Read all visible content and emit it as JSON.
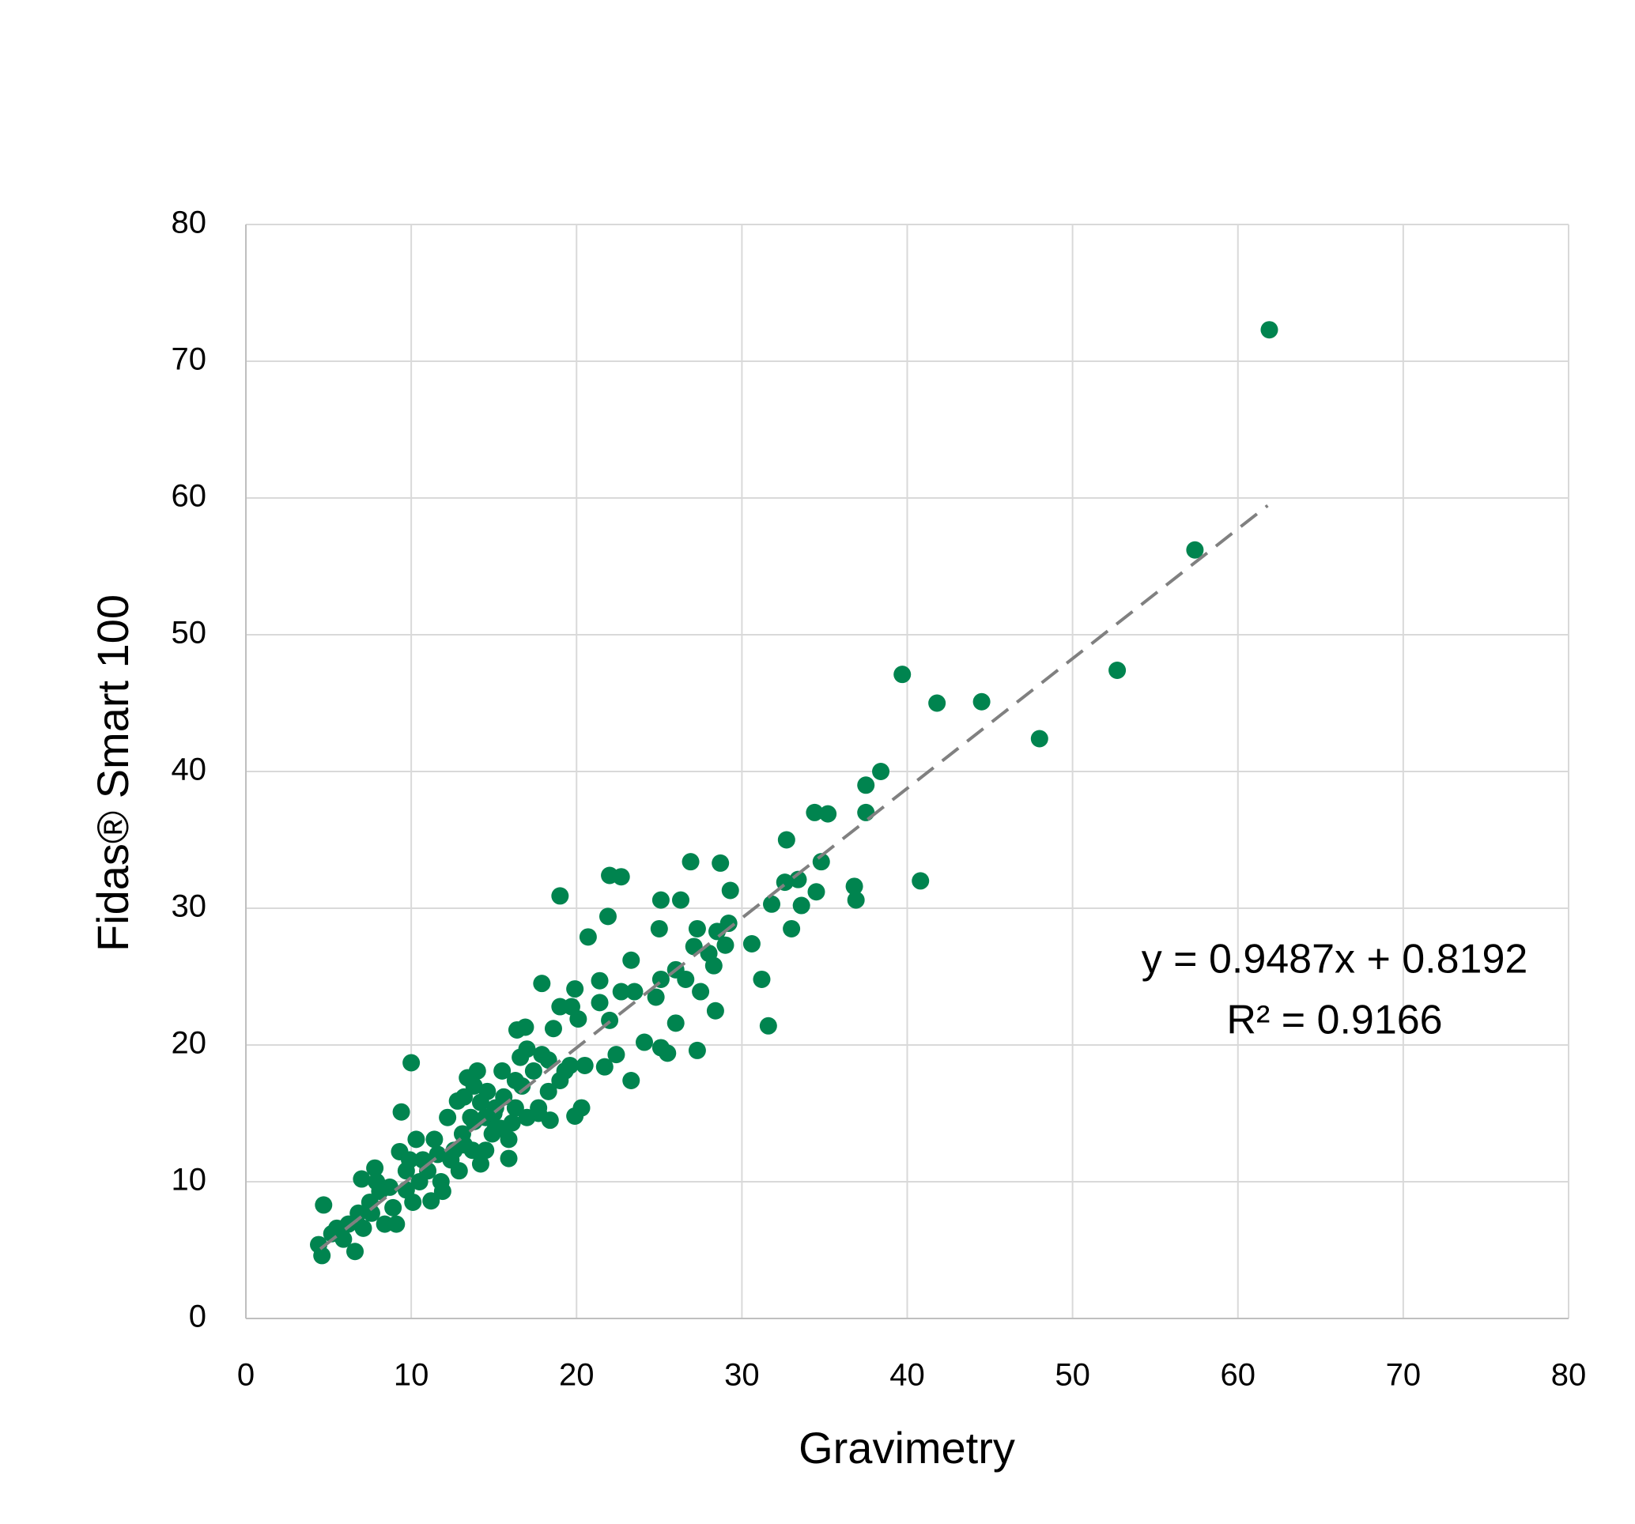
{
  "chart_data": {
    "type": "scatter",
    "x_label": "Gravimetry",
    "y_label": "Fidas® Smart 100",
    "xlim": [
      0,
      80
    ],
    "xticks": [
      0,
      10,
      20,
      30,
      40,
      50,
      60,
      70,
      80
    ],
    "ylim": [
      0,
      80
    ],
    "yticks": [
      0,
      10,
      20,
      30,
      40,
      50,
      60,
      70,
      80
    ],
    "grid": true,
    "series": [
      {
        "color": "#00844f",
        "x": [
          61.9,
          57.4,
          52.7,
          48.0,
          44.5,
          41.8,
          39.7,
          40.8,
          38.4,
          37.5,
          37.5,
          34.4,
          35.2,
          34.8,
          36.8,
          36.9,
          34.5,
          33.6,
          32.7,
          32.6,
          33.4,
          33.0,
          31.8,
          31.2,
          31.6,
          30.6,
          28.7,
          26.9,
          29.3,
          29.2,
          29.0,
          28.5,
          27.3,
          28.0,
          28.3,
          27.1,
          26.3,
          25.1,
          25.0,
          27.3,
          28.4,
          27.5,
          26.6,
          26.0,
          26.0,
          25.5,
          25.1,
          24.8,
          25.1,
          23.3,
          22.0,
          22.7,
          21.9,
          20.7,
          19.0,
          17.9,
          23.3,
          22.4,
          24.1,
          23.5,
          22.7,
          21.4,
          21.4,
          22.0,
          19.9,
          19.7,
          19.0,
          18.6,
          20.1,
          19.9,
          20.3,
          21.7,
          20.5,
          19.3,
          18.3,
          18.4,
          16.9,
          16.4,
          17.0,
          17.9,
          16.6,
          16.3,
          15.5,
          15.9,
          15.9,
          10.0,
          9.4,
          13.8,
          14.0,
          13.4,
          13.2,
          12.8,
          14.2,
          13.7,
          14.5,
          15.1,
          14.9,
          15.4,
          17.0,
          17.7,
          19.0,
          19.6,
          4.7,
          4.6,
          4.4,
          6.6,
          7.0,
          5.5,
          6.2,
          6.8,
          7.5,
          7.8,
          8.4,
          9.1,
          8.7,
          9.3,
          9.7,
          10.1,
          10.7,
          10.3,
          11.2,
          11.4,
          11.8,
          12.2,
          12.4,
          11.9,
          12.9,
          13.1,
          12.6,
          13.6,
          14.2,
          14.6,
          15.1,
          15.6,
          16.3,
          16.7,
          17.4,
          17.7,
          10.5,
          11.0,
          8.1,
          7.6,
          8.9,
          9.7,
          11.6,
          13.2,
          14.5,
          13.8,
          15.0,
          16.1,
          18.3,
          5.2,
          5.9,
          7.1,
          7.9,
          9.9
        ],
        "values": [
          72.3,
          56.2,
          47.4,
          42.4,
          45.1,
          45.0,
          47.1,
          32.0,
          40.0,
          39.0,
          37.0,
          37.0,
          36.9,
          33.4,
          31.6,
          30.6,
          31.2,
          30.2,
          35.0,
          31.9,
          32.1,
          28.5,
          30.3,
          24.8,
          21.4,
          27.4,
          33.3,
          33.4,
          31.3,
          28.9,
          27.3,
          28.3,
          28.5,
          26.7,
          25.8,
          27.2,
          30.6,
          30.6,
          28.5,
          19.6,
          22.5,
          23.9,
          24.8,
          25.5,
          21.6,
          19.4,
          19.8,
          23.5,
          24.8,
          26.2,
          32.4,
          32.3,
          29.4,
          27.9,
          30.9,
          24.5,
          17.4,
          19.3,
          20.2,
          23.9,
          23.9,
          24.7,
          23.1,
          21.8,
          24.1,
          22.8,
          22.8,
          21.2,
          21.9,
          14.8,
          15.4,
          18.4,
          18.5,
          18.1,
          16.6,
          14.5,
          21.3,
          21.1,
          19.7,
          19.3,
          19.1,
          17.4,
          18.1,
          13.1,
          11.7,
          18.7,
          15.1,
          17.0,
          18.1,
          17.6,
          16.2,
          15.9,
          11.3,
          12.3,
          14.7,
          15.4,
          13.5,
          13.9,
          14.7,
          15.4,
          17.4,
          18.5,
          8.3,
          4.6,
          5.4,
          4.9,
          10.2,
          6.6,
          6.9,
          7.7,
          8.5,
          11.0,
          6.9,
          6.9,
          9.6,
          12.2,
          10.8,
          8.5,
          11.6,
          13.1,
          8.6,
          13.1,
          10.0,
          14.7,
          11.6,
          9.3,
          10.8,
          13.5,
          12.3,
          14.7,
          15.8,
          16.6,
          13.9,
          16.2,
          15.4,
          17.0,
          18.1,
          15.0,
          10.0,
          10.8,
          9.3,
          7.7,
          8.1,
          9.4,
          12.0,
          12.7,
          12.3,
          14.4,
          15.0,
          14.3,
          18.9,
          6.2,
          5.8,
          6.6,
          10.0,
          11.6
        ]
      }
    ],
    "trendline": {
      "color": "#808080",
      "x": [
        4.5,
        61.8
      ],
      "y": [
        5.09,
        59.45
      ]
    },
    "annotations": [
      "y = 0.9487x + 0.8192",
      "R² = 0.9166"
    ]
  }
}
